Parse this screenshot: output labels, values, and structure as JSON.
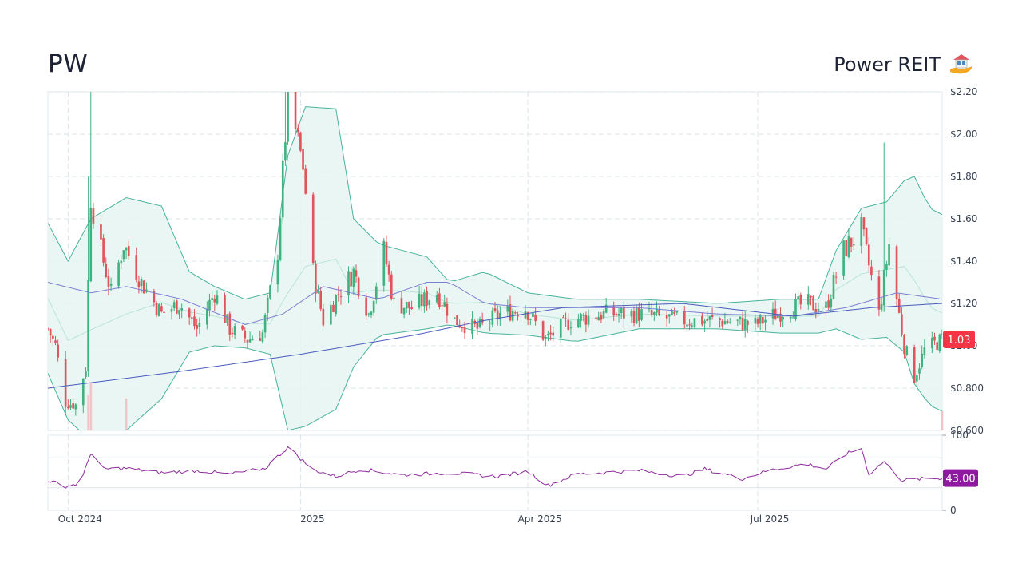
{
  "header": {
    "ticker": "PW",
    "company": "Power REIT",
    "logo_icon": "house-in-hand-icon"
  },
  "colors": {
    "up": "#3fb27f",
    "down": "#e0545b",
    "band_fill": "#e6f4f1",
    "band_line": "#46b39a",
    "sma_short": "#b7e4d8",
    "sma_mid": "#7a7fd0",
    "sma_long": "#4a5cbf",
    "rsi": "#8e2a9c",
    "price_badge": "#f23645",
    "rsi_badge": "#8e1b9f",
    "grid": "#d9e3ea"
  },
  "price_badge": "1.03",
  "rsi_badge": "43.00",
  "chart_data": {
    "type": "candlestick",
    "title": "",
    "x_range": [
      "2024-09-23",
      "2025-09-12"
    ],
    "x_ticks": [
      {
        "date": "2024-10-01",
        "label": "Oct 2024"
      },
      {
        "date": "2025-01-01",
        "label": "2025"
      },
      {
        "date": "2025-04-01",
        "label": "Apr 2025"
      },
      {
        "date": "2025-07-01",
        "label": "Jul 2025"
      }
    ],
    "price_axis": {
      "ylim": [
        0.6,
        2.2
      ],
      "ticks": [
        {
          "value": 2.2,
          "label": "$2.20"
        },
        {
          "value": 2.0,
          "label": "$2.00"
        },
        {
          "value": 1.8,
          "label": "$1.80"
        },
        {
          "value": 1.6,
          "label": "$1.60"
        },
        {
          "value": 1.4,
          "label": "$1.40"
        },
        {
          "value": 1.2,
          "label": "$1.20"
        },
        {
          "value": 1.0,
          "label": "$1.00"
        },
        {
          "value": 0.8,
          "label": "$0.800"
        },
        {
          "value": 0.6,
          "label": "$0.600"
        }
      ]
    },
    "rsi_axis": {
      "ylim": [
        0,
        100
      ],
      "ticks": [
        {
          "value": 100,
          "label": "100"
        },
        {
          "value": 0,
          "label": "0"
        }
      ],
      "levels": [
        70,
        30
      ]
    },
    "grid": true,
    "last_close": 1.03,
    "last_rsi": 43.0,
    "price_anchors": [
      [
        "2024-09-23",
        1.08
      ],
      [
        "2024-09-26",
        1.0
      ],
      [
        "2024-09-30",
        0.73
      ],
      [
        "2024-10-04",
        0.72
      ],
      [
        "2024-10-08",
        0.9
      ],
      [
        "2024-10-10",
        1.7
      ],
      [
        "2024-10-14",
        1.45
      ],
      [
        "2024-10-18",
        1.25
      ],
      [
        "2024-10-23",
        1.48
      ],
      [
        "2024-10-30",
        1.3
      ],
      [
        "2024-11-07",
        1.15
      ],
      [
        "2024-11-14",
        1.2
      ],
      [
        "2024-11-21",
        1.08
      ],
      [
        "2024-11-28",
        1.25
      ],
      [
        "2024-12-04",
        1.08
      ],
      [
        "2024-12-11",
        1.03
      ],
      [
        "2024-12-17",
        1.06
      ],
      [
        "2024-12-23",
        1.45
      ],
      [
        "2024-12-27",
        2.18
      ],
      [
        "2025-01-02",
        1.85
      ],
      [
        "2025-01-06",
        1.35
      ],
      [
        "2025-01-10",
        1.12
      ],
      [
        "2025-01-16",
        1.25
      ],
      [
        "2025-01-22",
        1.35
      ],
      [
        "2025-01-28",
        1.15
      ],
      [
        "2025-02-03",
        1.45
      ],
      [
        "2025-02-07",
        1.2
      ],
      [
        "2025-02-14",
        1.18
      ],
      [
        "2025-02-24",
        1.25
      ],
      [
        "2025-03-03",
        1.12
      ],
      [
        "2025-03-12",
        1.08
      ],
      [
        "2025-03-21",
        1.15
      ],
      [
        "2025-03-31",
        1.18
      ],
      [
        "2025-04-08",
        1.03
      ],
      [
        "2025-04-18",
        1.12
      ],
      [
        "2025-05-01",
        1.15
      ],
      [
        "2025-05-15",
        1.15
      ],
      [
        "2025-06-01",
        1.12
      ],
      [
        "2025-06-15",
        1.12
      ],
      [
        "2025-06-30",
        1.1
      ],
      [
        "2025-07-10",
        1.16
      ],
      [
        "2025-07-20",
        1.2
      ],
      [
        "2025-07-28",
        1.18
      ],
      [
        "2025-08-04",
        1.45
      ],
      [
        "2025-08-11",
        1.55
      ],
      [
        "2025-08-18",
        1.15
      ],
      [
        "2025-08-22",
        1.48
      ],
      [
        "2025-08-25",
        1.22
      ],
      [
        "2025-08-28",
        1.0
      ],
      [
        "2025-09-01",
        0.85
      ],
      [
        "2025-09-05",
        0.98
      ],
      [
        "2025-09-12",
        1.03
      ]
    ],
    "spikes": [
      {
        "date": "2024-10-09",
        "high": 1.8
      },
      {
        "date": "2024-10-10",
        "high": 2.2
      },
      {
        "date": "2024-12-26",
        "high": 2.2
      },
      {
        "date": "2024-12-27",
        "high": 2.2
      },
      {
        "date": "2025-08-20",
        "high": 1.96
      }
    ],
    "bollinger_anchors": [
      [
        "2024-09-23",
        1.58,
        0.87
      ],
      [
        "2024-10-01",
        1.4,
        0.65
      ],
      [
        "2024-10-10",
        1.6,
        0.55
      ],
      [
        "2024-10-24",
        1.7,
        0.6
      ],
      [
        "2024-11-07",
        1.66,
        0.75
      ],
      [
        "2024-11-18",
        1.35,
        0.97
      ],
      [
        "2024-11-28",
        1.28,
        1.0
      ],
      [
        "2024-12-10",
        1.22,
        0.99
      ],
      [
        "2024-12-20",
        1.25,
        0.96
      ],
      [
        "2024-12-27",
        1.9,
        0.6
      ],
      [
        "2025-01-03",
        2.13,
        0.62
      ],
      [
        "2025-01-15",
        2.12,
        0.7
      ],
      [
        "2025-01-22",
        1.6,
        0.9
      ],
      [
        "2025-02-01",
        1.48,
        1.05
      ],
      [
        "2025-02-20",
        1.42,
        1.08
      ],
      [
        "2025-03-01",
        1.3,
        1.1
      ],
      [
        "2025-03-15",
        1.35,
        1.06
      ],
      [
        "2025-04-01",
        1.25,
        1.05
      ],
      [
        "2025-04-20",
        1.22,
        1.02
      ],
      [
        "2025-05-15",
        1.22,
        1.08
      ],
      [
        "2025-06-15",
        1.2,
        1.08
      ],
      [
        "2025-07-10",
        1.22,
        1.06
      ],
      [
        "2025-07-25",
        1.22,
        1.06
      ],
      [
        "2025-08-01",
        1.45,
        1.08
      ],
      [
        "2025-08-11",
        1.65,
        1.03
      ],
      [
        "2025-08-21",
        1.68,
        1.04
      ],
      [
        "2025-08-28",
        1.78,
        0.97
      ],
      [
        "2025-09-01",
        1.8,
        0.82
      ],
      [
        "2025-09-07",
        1.65,
        0.72
      ],
      [
        "2025-09-12",
        1.62,
        0.69
      ]
    ],
    "sma_mid_anchors": [
      [
        "2024-09-23",
        1.3
      ],
      [
        "2024-10-10",
        1.25
      ],
      [
        "2024-10-24",
        1.28
      ],
      [
        "2024-11-15",
        1.22
      ],
      [
        "2024-12-10",
        1.1
      ],
      [
        "2024-12-25",
        1.15
      ],
      [
        "2025-01-10",
        1.28
      ],
      [
        "2025-02-01",
        1.22
      ],
      [
        "2025-02-20",
        1.3
      ],
      [
        "2025-03-01",
        1.3
      ],
      [
        "2025-03-15",
        1.2
      ],
      [
        "2025-04-01",
        1.18
      ],
      [
        "2025-05-15",
        1.18
      ],
      [
        "2025-06-15",
        1.15
      ],
      [
        "2025-07-15",
        1.14
      ],
      [
        "2025-08-05",
        1.18
      ],
      [
        "2025-08-25",
        1.25
      ],
      [
        "2025-09-12",
        1.22
      ]
    ],
    "sma_long_anchors": [
      [
        "2024-09-23",
        0.8
      ],
      [
        "2024-11-15",
        0.88
      ],
      [
        "2025-01-01",
        0.96
      ],
      [
        "2025-02-15",
        1.05
      ],
      [
        "2025-03-15",
        1.12
      ],
      [
        "2025-04-15",
        1.18
      ],
      [
        "2025-06-01",
        1.2
      ],
      [
        "2025-07-15",
        1.14
      ],
      [
        "2025-08-15",
        1.18
      ],
      [
        "2025-09-12",
        1.2
      ]
    ],
    "rsi_anchors": [
      [
        "2024-09-23",
        40
      ],
      [
        "2024-09-30",
        32
      ],
      [
        "2024-10-06",
        36
      ],
      [
        "2024-10-10",
        77
      ],
      [
        "2024-10-15",
        55
      ],
      [
        "2024-10-24",
        56
      ],
      [
        "2024-11-07",
        50
      ],
      [
        "2024-11-21",
        53
      ],
      [
        "2024-12-04",
        48
      ],
      [
        "2024-12-18",
        56
      ],
      [
        "2024-12-27",
        84
      ],
      [
        "2025-01-06",
        54
      ],
      [
        "2025-01-15",
        45
      ],
      [
        "2025-01-25",
        55
      ],
      [
        "2025-02-10",
        47
      ],
      [
        "2025-03-01",
        50
      ],
      [
        "2025-03-20",
        45
      ],
      [
        "2025-04-01",
        52
      ],
      [
        "2025-04-09",
        33
      ],
      [
        "2025-04-20",
        48
      ],
      [
        "2025-05-15",
        53
      ],
      [
        "2025-06-01",
        45
      ],
      [
        "2025-06-10",
        55
      ],
      [
        "2025-06-25",
        42
      ],
      [
        "2025-07-05",
        53
      ],
      [
        "2025-07-20",
        62
      ],
      [
        "2025-07-28",
        55
      ],
      [
        "2025-08-05",
        75
      ],
      [
        "2025-08-11",
        83
      ],
      [
        "2025-08-14",
        48
      ],
      [
        "2025-08-20",
        65
      ],
      [
        "2025-08-27",
        40
      ],
      [
        "2025-09-05",
        42
      ],
      [
        "2025-09-12",
        43
      ]
    ],
    "volume_spikes": [
      {
        "date": "2024-10-09",
        "height": 0.55
      },
      {
        "date": "2024-10-10",
        "height": 0.75
      },
      {
        "date": "2024-10-24",
        "height": 0.5
      },
      {
        "date": "2025-09-12",
        "height": 0.3
      }
    ]
  }
}
